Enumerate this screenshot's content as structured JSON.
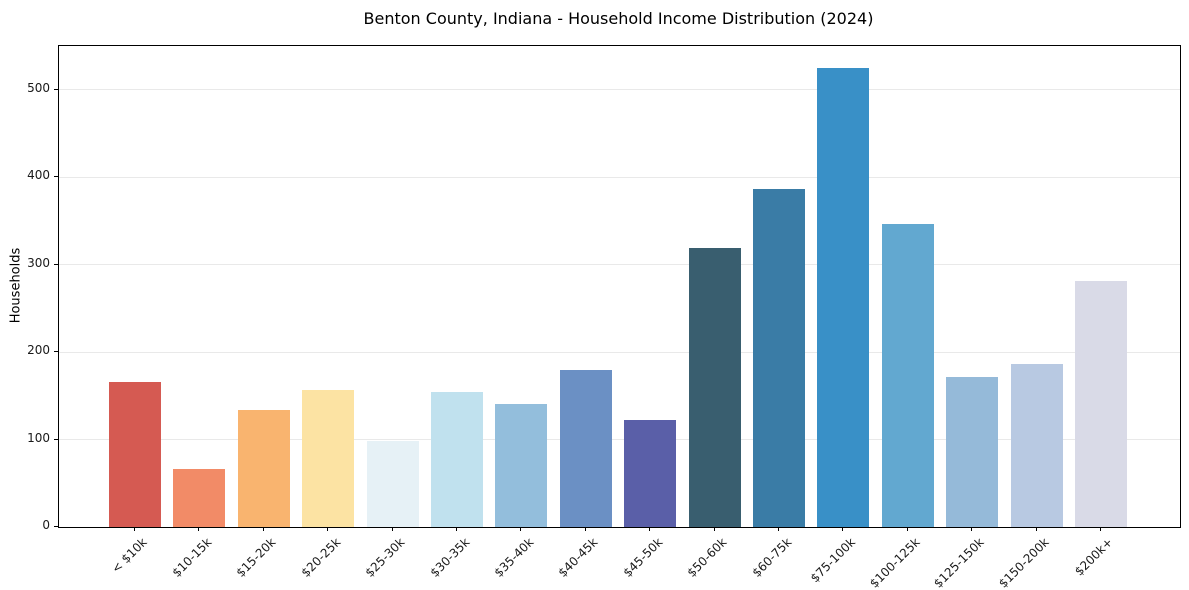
{
  "chart_data": {
    "type": "bar",
    "title": "Benton County, Indiana - Household Income Distribution (2024)",
    "xlabel": "",
    "ylabel": "Households",
    "ylim": [
      0,
      550
    ],
    "yticks": [
      0,
      100,
      200,
      300,
      400,
      500
    ],
    "grid": "horizontal-only",
    "legend": "none",
    "categories": [
      "< $10k",
      "$10-15k",
      "$15-20k",
      "$20-25k",
      "$25-30k",
      "$30-35k",
      "$35-40k",
      "$40-45k",
      "$45-50k",
      "$50-60k",
      "$60-75k",
      "$75-100k",
      "$100-125k",
      "$125-150k",
      "$150-200k",
      "$200k+"
    ],
    "values": [
      166,
      66,
      134,
      157,
      98,
      154,
      141,
      179,
      122,
      319,
      386,
      525,
      347,
      171,
      186,
      281
    ],
    "bar_colors": [
      "#d55a52",
      "#f28b67",
      "#f9b46f",
      "#fce3a3",
      "#e6f1f6",
      "#c0e1ee",
      "#93bedc",
      "#6b90c4",
      "#5a5fa8",
      "#395e6f",
      "#3a7ca6",
      "#3990c7",
      "#62a8d0",
      "#95bad9",
      "#b8c9e2",
      "#d9dae7"
    ],
    "colors": {
      "background": "#ffffff",
      "axis": "#000000",
      "grid": "#e9e9e9",
      "text": "#1a1a1a"
    }
  }
}
